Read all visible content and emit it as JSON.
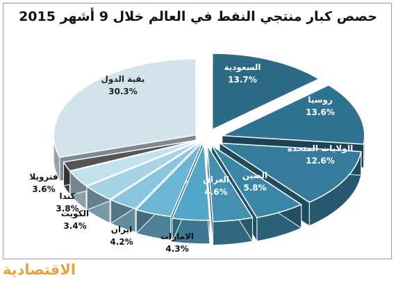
{
  "brand": {
    "logo_text": "الاقتصادية",
    "logo_color": "#e8a23a"
  },
  "chart_data": {
    "type": "pie",
    "title": "حصص كبار منتجي النفط في العالم خلال 9 أشهر 2015",
    "slices": [
      {
        "label": "السعودية",
        "value": 13.7,
        "value_label": "13.7%",
        "color": "#2c6a86"
      },
      {
        "label": "روسيا",
        "value": 13.6,
        "value_label": "13.6%",
        "color": "#2f7291"
      },
      {
        "label": "الولايات المتحدة",
        "value": 12.6,
        "value_label": "12.6%",
        "color": "#357c9c"
      },
      {
        "label": "الصين",
        "value": 5.8,
        "value_label": "5.8%",
        "color": "#3a86a6"
      },
      {
        "label": "العراق",
        "value": 4.6,
        "value_label": "4.6%",
        "color": "#4390b0"
      },
      {
        "label": "الامارات",
        "value": 4.3,
        "value_label": "4.3%",
        "color": "#54a6c9"
      },
      {
        "label": "ايران",
        "value": 4.2,
        "value_label": "4.2%",
        "color": "#6cb5d4"
      },
      {
        "label": "الكويت",
        "value": 3.4,
        "value_label": "3.4%",
        "color": "#8ac5de"
      },
      {
        "label": "كندا",
        "value": 3.8,
        "value_label": "3.8%",
        "color": "#a6d3e6"
      },
      {
        "label": "فنزويلا",
        "value": 3.6,
        "value_label": "3.6%",
        "color": "#c2e0ed"
      },
      {
        "label": "",
        "value": 2.0,
        "value_label": "",
        "color": "#555555"
      },
      {
        "label": "بقية الدول",
        "value": 30.3,
        "value_label": "30.3%",
        "color": "#d2e3ec"
      }
    ]
  }
}
